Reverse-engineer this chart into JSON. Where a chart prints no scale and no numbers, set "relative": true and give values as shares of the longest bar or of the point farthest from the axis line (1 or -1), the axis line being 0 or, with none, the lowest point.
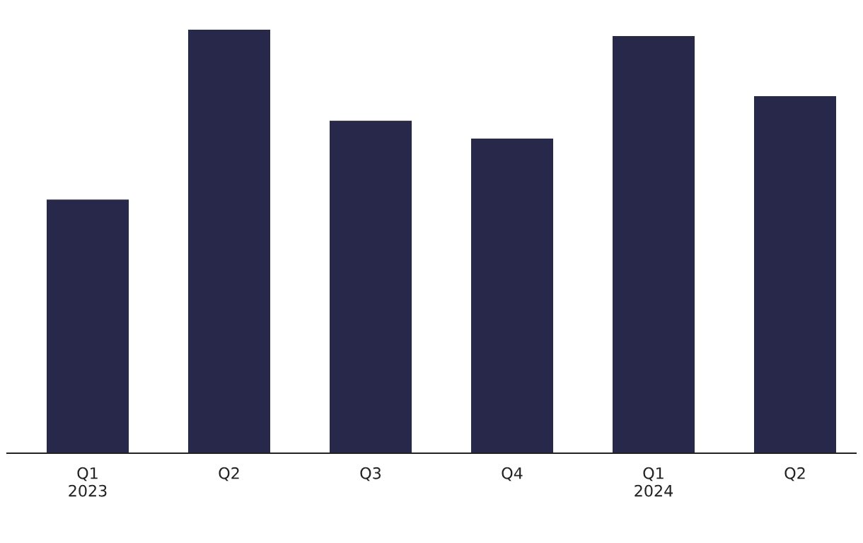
{
  "chart_data": {
    "type": "bar",
    "relative": true,
    "categories": [
      "Q1\n2023",
      "Q2",
      "Q3",
      "Q4",
      "Q1\n2024",
      "Q2"
    ],
    "values": [
      0.599,
      1,
      0.785,
      0.743,
      0.985,
      0.843
    ],
    "color": "#28284a",
    "grid": false,
    "legend": false
  }
}
